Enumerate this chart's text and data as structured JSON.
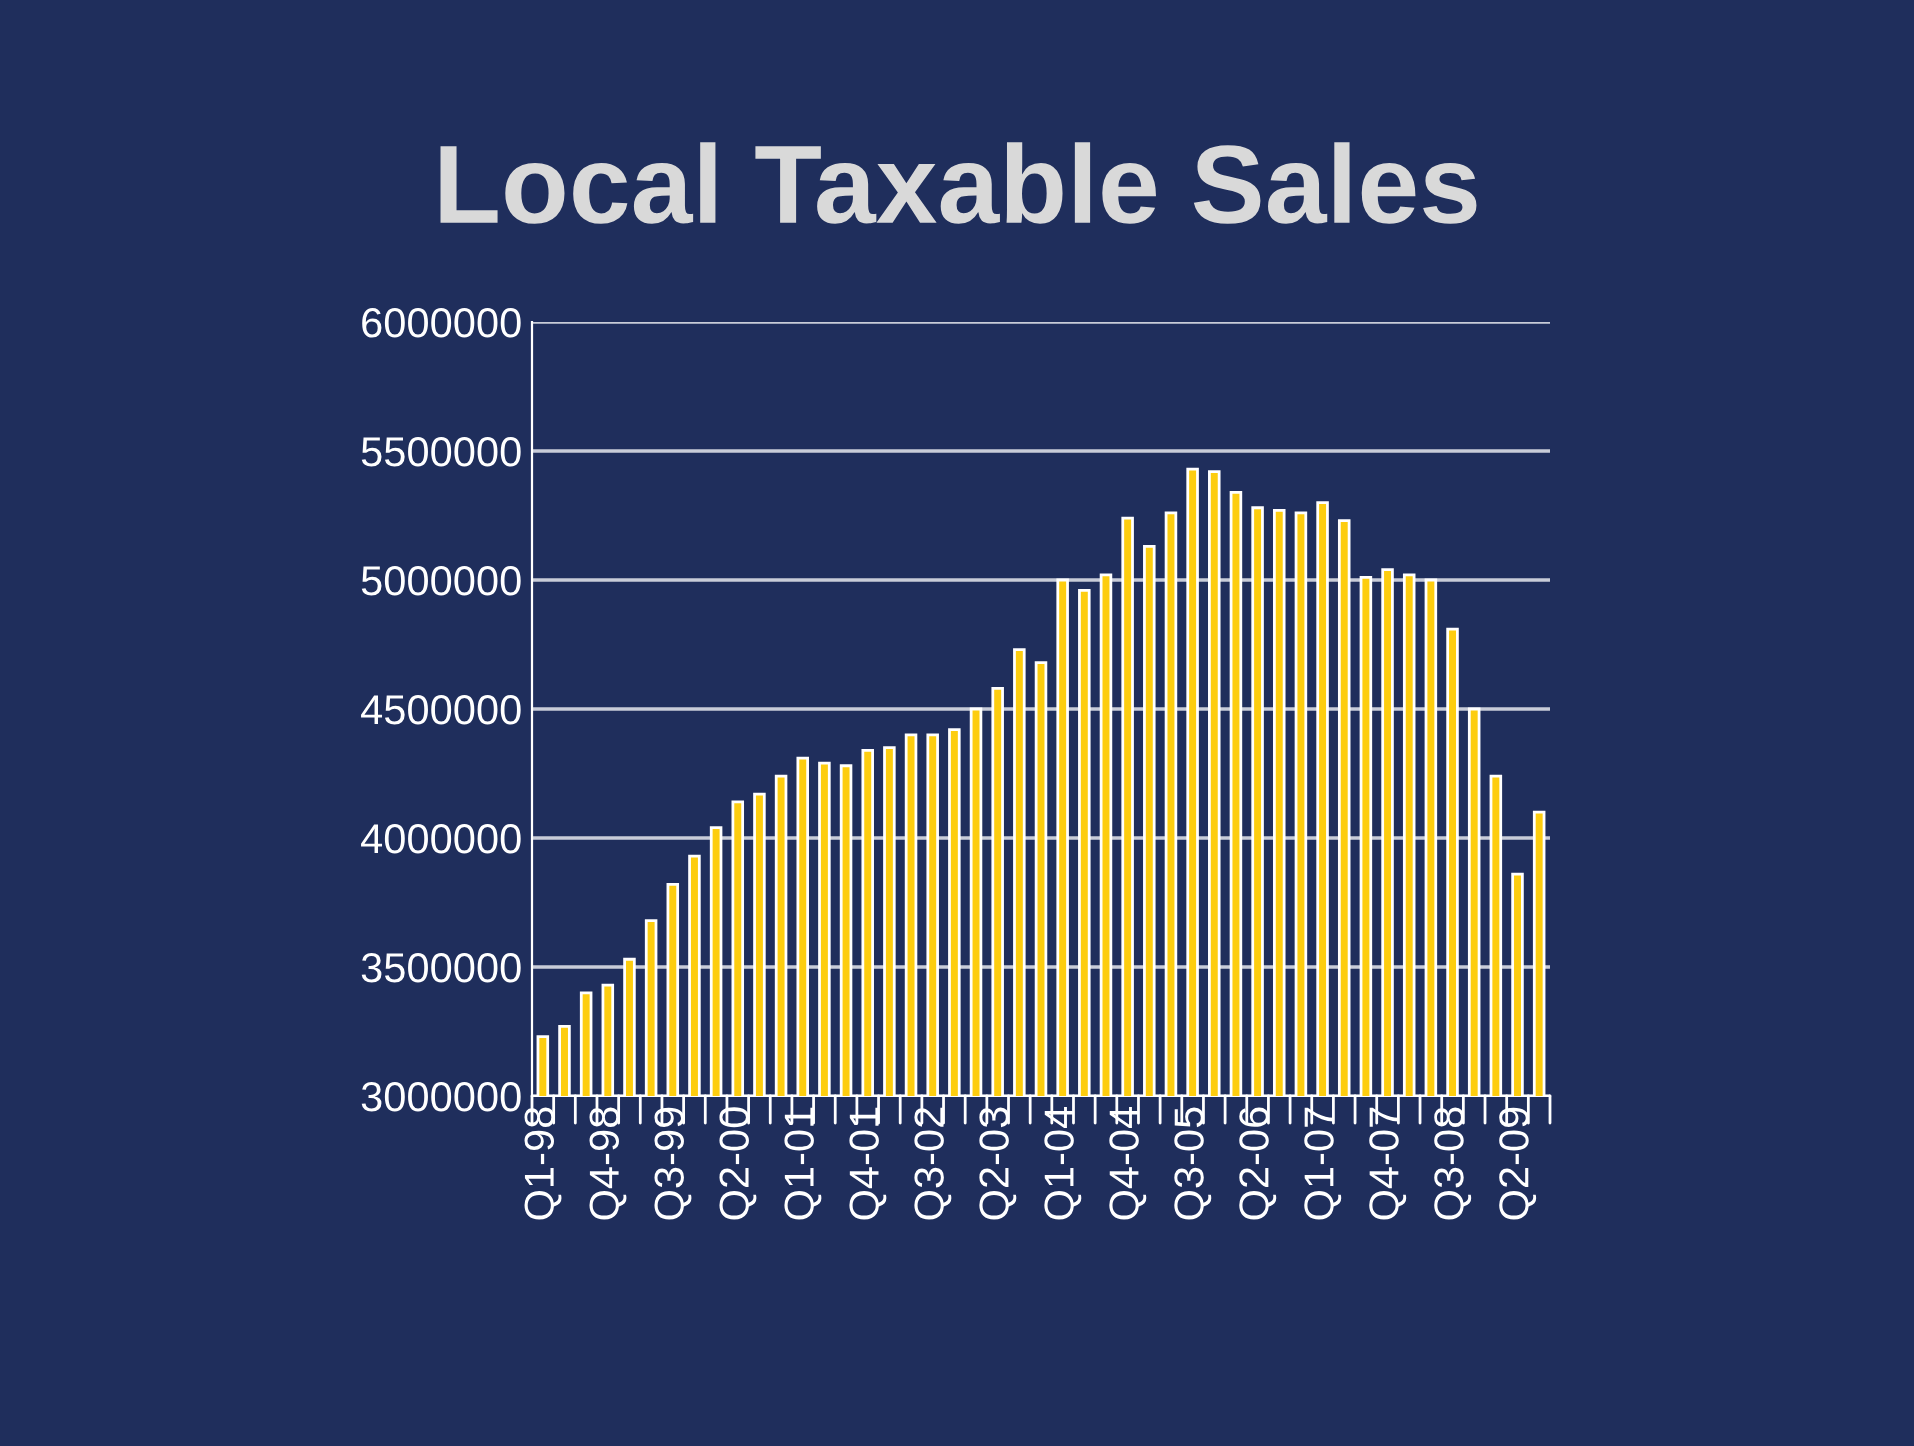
{
  "chart_data": {
    "type": "bar",
    "title": "Local Taxable Sales",
    "categories": [
      "Q1-98",
      null,
      null,
      "Q4-98",
      null,
      null,
      "Q3-99",
      null,
      null,
      "Q2-00",
      null,
      null,
      "Q1-01",
      null,
      null,
      "Q4-01",
      null,
      null,
      "Q3-02",
      null,
      null,
      "Q2-03",
      null,
      null,
      "Q1-04",
      null,
      null,
      "Q4-04",
      null,
      null,
      "Q3-05",
      null,
      null,
      "Q2-06",
      null,
      null,
      "Q1-07",
      null,
      null,
      "Q4-07",
      null,
      null,
      "Q3-08",
      null,
      null,
      "Q2-09",
      null
    ],
    "values": [
      3230000,
      3270000,
      3400000,
      3430000,
      3530000,
      3680000,
      3820000,
      3930000,
      4040000,
      4140000,
      4170000,
      4240000,
      4310000,
      4290000,
      4280000,
      4340000,
      4350000,
      4400000,
      4400000,
      4420000,
      4500000,
      4580000,
      4730000,
      4680000,
      5000000,
      4960000,
      5020000,
      5240000,
      5130000,
      5260000,
      5430000,
      5420000,
      5340000,
      5280000,
      5270000,
      5260000,
      5300000,
      5230000,
      5010000,
      5040000,
      5020000,
      5000000,
      4810000,
      4500000,
      4240000,
      3860000,
      4100000
    ],
    "color": "#fdcd0f",
    "ylim": [
      3000000,
      6000000
    ],
    "yticks": [
      3000000,
      3500000,
      4000000,
      4500000,
      5000000,
      5500000,
      6000000
    ],
    "grid": "y",
    "legend": false
  }
}
